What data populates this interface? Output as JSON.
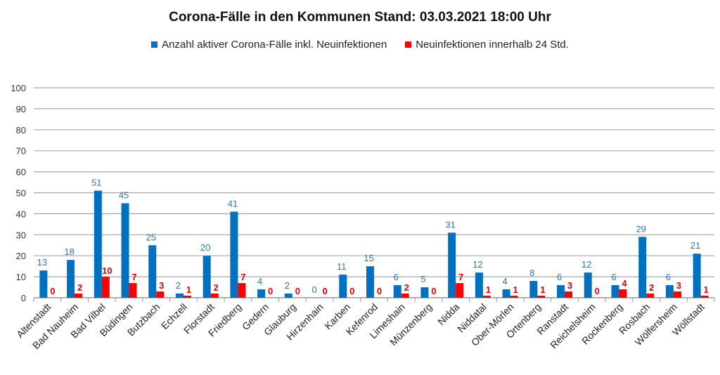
{
  "chart_data": {
    "type": "bar",
    "title": "Corona-Fälle in den Kommunen Stand: 03.03.2021 18:00 Uhr",
    "xlabel": "",
    "ylabel": "",
    "ylim": [
      0,
      100
    ],
    "yticks": [
      0,
      10,
      20,
      30,
      40,
      50,
      60,
      70,
      80,
      90,
      100
    ],
    "grid": true,
    "legend_position": "top",
    "categories": [
      "Altenstadt",
      "Bad Nauheim",
      "Bad Vilbel",
      "Büdingen",
      "Butzbach",
      "Echzell",
      "Florstadt",
      "Friedberg",
      "Gedern",
      "Glauburg",
      "Hirzenhain",
      "Karben",
      "Kefenrod",
      "Limeshain",
      "Münzenberg",
      "Nidda",
      "Niddatal",
      "Ober-Mörlen",
      "Ortenberg",
      "Ranstadt",
      "Reichelsheim",
      "Rockenberg",
      "Rosbach",
      "Wölfersheim",
      "Wöllstadt"
    ],
    "series": [
      {
        "name": "Anzahl aktiver Corona-Fälle inkl. Neuinfektionen",
        "color": "#0070c0",
        "label_color": "#2e75b6",
        "values": [
          13,
          18,
          51,
          45,
          25,
          2,
          20,
          41,
          4,
          2,
          0,
          11,
          15,
          6,
          5,
          31,
          12,
          4,
          8,
          6,
          12,
          6,
          29,
          6,
          21
        ]
      },
      {
        "name": "Neuinfektionen innerhalb 24 Std.",
        "color": "#ff0000",
        "label_color": "#e00000",
        "values": [
          0,
          2,
          10,
          7,
          3,
          1,
          2,
          7,
          0,
          0,
          0,
          0,
          0,
          2,
          0,
          7,
          1,
          1,
          1,
          3,
          0,
          4,
          2,
          3,
          1
        ]
      }
    ]
  }
}
